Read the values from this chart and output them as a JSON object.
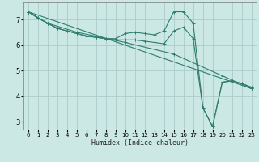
{
  "xlabel": "Humidex (Indice chaleur)",
  "bg_color": "#cce8e4",
  "grid_color": "#aacccc",
  "line_color": "#2e7d6e",
  "xlim": [
    -0.5,
    23.5
  ],
  "ylim": [
    2.7,
    7.65
  ],
  "xticks": [
    0,
    1,
    2,
    3,
    4,
    5,
    6,
    7,
    8,
    9,
    10,
    11,
    12,
    13,
    14,
    15,
    16,
    17,
    18,
    19,
    20,
    21,
    22,
    23
  ],
  "yticks": [
    3,
    4,
    5,
    6,
    7
  ],
  "series": [
    {
      "x": [
        0,
        1,
        2,
        3,
        4,
        5,
        6,
        7,
        8,
        9,
        10,
        11,
        12,
        13,
        14,
        15,
        16,
        17,
        18,
        19,
        20,
        21,
        22,
        23
      ],
      "y": [
        7.3,
        7.05,
        6.85,
        6.65,
        6.55,
        6.45,
        6.35,
        6.3,
        6.25,
        6.25,
        6.45,
        6.5,
        6.45,
        6.4,
        6.55,
        7.3,
        7.3,
        6.85,
        3.55,
        2.82,
        4.55,
        4.6,
        4.5,
        4.35
      ]
    },
    {
      "x": [
        0,
        1,
        2,
        3,
        4,
        5,
        6,
        7,
        8,
        9,
        10,
        11,
        12,
        13,
        14,
        15,
        16,
        17,
        18,
        19,
        20,
        21,
        22,
        23
      ],
      "y": [
        7.3,
        7.05,
        6.85,
        6.65,
        6.55,
        6.45,
        6.35,
        6.3,
        6.25,
        6.2,
        6.2,
        6.2,
        6.15,
        6.1,
        6.05,
        6.55,
        6.7,
        6.25,
        3.55,
        2.82,
        4.55,
        4.6,
        4.5,
        4.35
      ]
    },
    {
      "x": [
        0,
        23
      ],
      "y": [
        7.3,
        4.3
      ]
    },
    {
      "x": [
        0,
        2,
        5,
        10,
        15,
        20,
        23
      ],
      "y": [
        7.3,
        6.85,
        6.5,
        6.1,
        5.65,
        4.8,
        4.3
      ]
    }
  ]
}
